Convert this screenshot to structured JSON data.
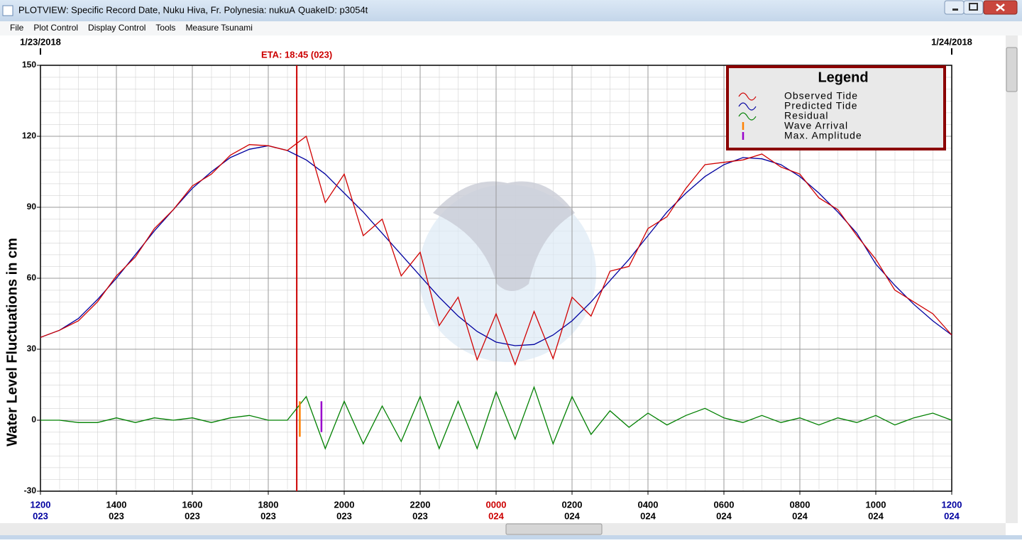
{
  "window": {
    "title": "PLOTVIEW: Specific Record Date, Nuku Hiva, Fr. Polynesia: nukuA",
    "quake_id": "QuakeID: p3054t",
    "menu": [
      "File",
      "Plot Control",
      "Display Control",
      "Tools",
      "Measure Tsunami"
    ]
  },
  "chart_data": {
    "type": "line",
    "y_label": "Water Level Fluctuations in cm",
    "dates": [
      "1/23/2018",
      "1/24/2018"
    ],
    "eta": {
      "label": "ETA: 18:45 (023)",
      "x": 18.75,
      "color": "#cc0000"
    },
    "legend_title": "Legend",
    "legend": "top-right",
    "grid": true,
    "minor_grid": true,
    "xlim": [
      12,
      36
    ],
    "ylim": [
      -30,
      150
    ],
    "yticks": [
      150,
      120,
      90,
      60,
      30,
      0,
      -30
    ],
    "xticks": [
      {
        "value": 12,
        "label": "1200",
        "day": "023",
        "color": "#0000a0"
      },
      {
        "value": 14,
        "label": "1400",
        "day": "023",
        "color": "#000000"
      },
      {
        "value": 16,
        "label": "1600",
        "day": "023",
        "color": "#000000"
      },
      {
        "value": 18,
        "label": "1800",
        "day": "023",
        "color": "#000000"
      },
      {
        "value": 20,
        "label": "2000",
        "day": "023",
        "color": "#000000"
      },
      {
        "value": 22,
        "label": "2200",
        "day": "023",
        "color": "#000000"
      },
      {
        "value": 24,
        "label": "0000",
        "day": "024",
        "color": "#cc0000"
      },
      {
        "value": 26,
        "label": "0200",
        "day": "024",
        "color": "#000000"
      },
      {
        "value": 28,
        "label": "0400",
        "day": "024",
        "color": "#000000"
      },
      {
        "value": 30,
        "label": "0600",
        "day": "024",
        "color": "#000000"
      },
      {
        "value": 32,
        "label": "0800",
        "day": "024",
        "color": "#000000"
      },
      {
        "value": 34,
        "label": "1000",
        "day": "024",
        "color": "#000000"
      },
      {
        "value": 36,
        "label": "1200",
        "day": "024",
        "color": "#0000a0"
      }
    ],
    "x": [
      12,
      12.5,
      13,
      13.5,
      14,
      14.5,
      15,
      15.5,
      16,
      16.5,
      17,
      17.5,
      18,
      18.5,
      19,
      19.5,
      20,
      20.5,
      21,
      21.5,
      22,
      22.5,
      23,
      23.5,
      24,
      24.5,
      25,
      25.5,
      26,
      26.5,
      27,
      27.5,
      28,
      28.5,
      29,
      29.5,
      30,
      30.5,
      31,
      31.5,
      32,
      32.5,
      33,
      33.5,
      34,
      34.5,
      35,
      35.5,
      36
    ],
    "series": [
      {
        "name": "Observed Tide",
        "color": "#d00000",
        "values": [
          35,
          38,
          42,
          50,
          61,
          69,
          81,
          89,
          99,
          104,
          112,
          116.5,
          116,
          114,
          120,
          92,
          104,
          78,
          85,
          61,
          71,
          40,
          52,
          25.5,
          45,
          23.5,
          46,
          26,
          52,
          44,
          63,
          65,
          81,
          86,
          98,
          108,
          109,
          110,
          112.5,
          107,
          104,
          94,
          89,
          78,
          68,
          55,
          50,
          45,
          36
        ]
      },
      {
        "name": "Predicted Tide",
        "color": "#0000a0",
        "values": [
          35,
          38,
          43,
          51,
          60,
          70,
          80,
          89,
          98,
          105,
          111,
          114.5,
          116,
          114,
          110,
          104,
          96,
          88,
          79,
          70,
          61,
          52,
          44,
          37.5,
          33,
          31.5,
          32,
          36,
          42,
          50,
          59,
          68,
          78,
          88,
          96,
          103,
          108,
          111,
          110.5,
          108,
          103,
          96,
          88,
          79,
          66,
          57,
          49,
          42,
          36
        ]
      },
      {
        "name": "Residual",
        "color": "#008000",
        "values": [
          0,
          0,
          -1,
          -1,
          1,
          -1,
          1,
          0,
          1,
          -1,
          1,
          2,
          0,
          0,
          10,
          -12,
          8,
          -10,
          6,
          -9,
          10,
          -12,
          8,
          -12,
          12,
          -8,
          14,
          -10,
          10,
          -6,
          4,
          -3,
          3,
          -2,
          2,
          5,
          1,
          -1,
          2,
          -1,
          1,
          -2,
          1,
          -1,
          2,
          -2,
          1,
          3,
          0
        ]
      }
    ],
    "markers": [
      {
        "name": "Wave Arrival",
        "color": "#ff8000",
        "x": 18.83,
        "values": [
          -7,
          8
        ]
      },
      {
        "name": "Max. Amplitude",
        "color": "#9900cc",
        "x": 19.4,
        "values": [
          -5,
          8
        ]
      }
    ]
  }
}
